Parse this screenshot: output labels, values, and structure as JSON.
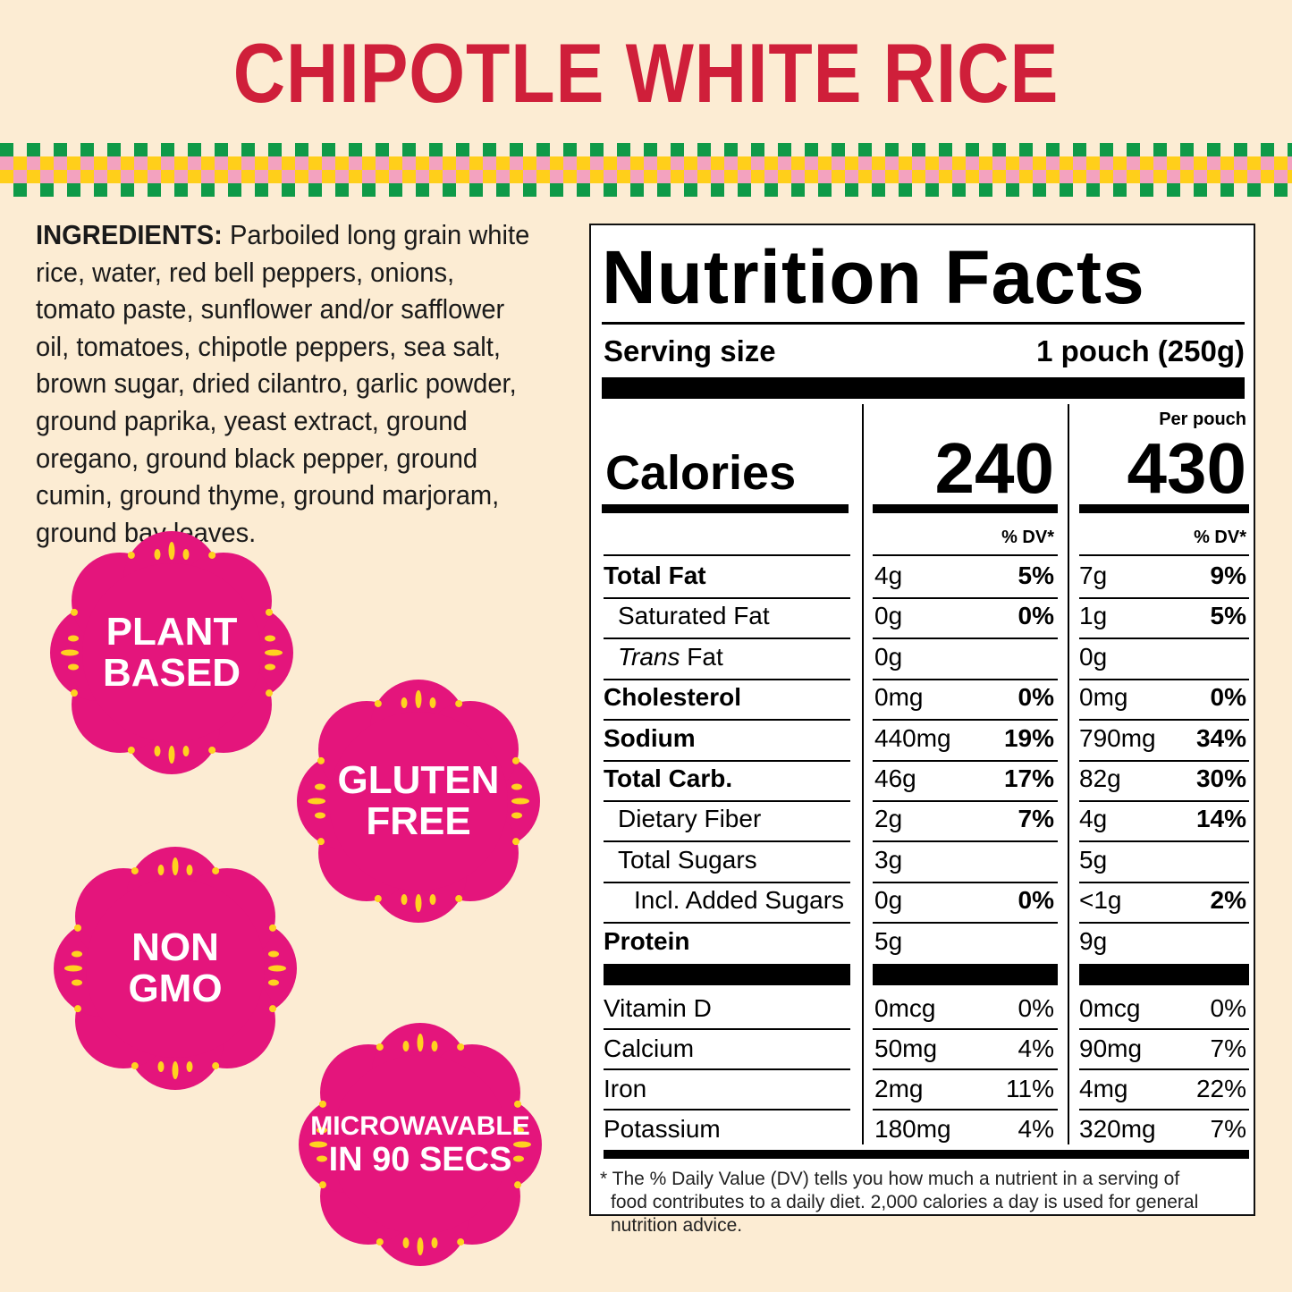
{
  "title": "CHIPOTLE WHITE RICE",
  "colors": {
    "background": "#fcecd3",
    "title": "#cf1f3a",
    "badge": "#e4157c",
    "badge_dot": "#ffd21f",
    "checker_green": "#0f9a48",
    "checker_pink": "#f3a2bf",
    "checker_yellow": "#ffcf1a"
  },
  "ingredients": {
    "label": "INGREDIENTS:",
    "text": "Parboiled long grain white rice, water, red bell peppers, onions, tomato paste, sunflower and/or safflower oil, tomatoes, chipotle peppers, sea salt, brown sugar, dried cilantro, garlic powder, ground paprika, yeast extract, ground oregano, ground black pepper, ground cumin, ground thyme, ground marjoram, ground bay leaves."
  },
  "badges": [
    {
      "line1": "PLANT",
      "line2": "BASED"
    },
    {
      "line1": "GLUTEN",
      "line2": "FREE"
    },
    {
      "line1": "NON",
      "line2": "GMO"
    },
    {
      "line1": "MICROWAVABLE",
      "line2": "IN 90 SECS"
    }
  ],
  "nutrition": {
    "title": "Nutrition Facts",
    "serving_label": "Serving size",
    "serving_value": "1 pouch (250g)",
    "per_pouch_label": "Per pouch",
    "calories_label": "Calories",
    "calories_serving": "240",
    "calories_pouch": "430",
    "dv_header": "% DV*",
    "rows": [
      {
        "label": "Total Fat",
        "s_amt": "4g",
        "s_dv": "5%",
        "p_amt": "7g",
        "p_dv": "9%"
      },
      {
        "label": "Saturated Fat",
        "s_amt": "0g",
        "s_dv": "0%",
        "p_amt": "1g",
        "p_dv": "5%"
      },
      {
        "label_i": "Trans",
        "label": " Fat",
        "s_amt": "0g",
        "s_dv": "",
        "p_amt": "0g",
        "p_dv": ""
      },
      {
        "label": "Cholesterol",
        "s_amt": "0mg",
        "s_dv": "0%",
        "p_amt": "0mg",
        "p_dv": "0%"
      },
      {
        "label": "Sodium",
        "s_amt": "440mg",
        "s_dv": "19%",
        "p_amt": "790mg",
        "p_dv": "34%"
      },
      {
        "label": "Total Carb.",
        "s_amt": "46g",
        "s_dv": "17%",
        "p_amt": "82g",
        "p_dv": "30%"
      },
      {
        "label": "Dietary Fiber",
        "s_amt": "2g",
        "s_dv": "7%",
        "p_amt": "4g",
        "p_dv": "14%"
      },
      {
        "label": "Total Sugars",
        "s_amt": "3g",
        "s_dv": "",
        "p_amt": "5g",
        "p_dv": ""
      },
      {
        "label": "Incl. Added Sugars",
        "s_amt": "0g",
        "s_dv": "0%",
        "p_amt": "<1g",
        "p_dv": "2%"
      },
      {
        "label": "Protein",
        "s_amt": "5g",
        "s_dv": "",
        "p_amt": "9g",
        "p_dv": ""
      }
    ],
    "vitamins": [
      {
        "label": "Vitamin D",
        "s_amt": "0mcg",
        "s_dv": "0%",
        "p_amt": "0mcg",
        "p_dv": "0%"
      },
      {
        "label": "Calcium",
        "s_amt": "50mg",
        "s_dv": "4%",
        "p_amt": "90mg",
        "p_dv": "7%"
      },
      {
        "label": "Iron",
        "s_amt": "2mg",
        "s_dv": "11%",
        "p_amt": "4mg",
        "p_dv": "22%"
      },
      {
        "label": "Potassium",
        "s_amt": "180mg",
        "s_dv": "4%",
        "p_amt": "320mg",
        "p_dv": "7%"
      }
    ],
    "footnote_line1": "* The % Daily Value (DV) tells you how much a nutrient in a serving of",
    "footnote_line2": "food contributes to a daily diet. 2,000 calories a day is used for general",
    "footnote_line3": "nutrition advice."
  }
}
